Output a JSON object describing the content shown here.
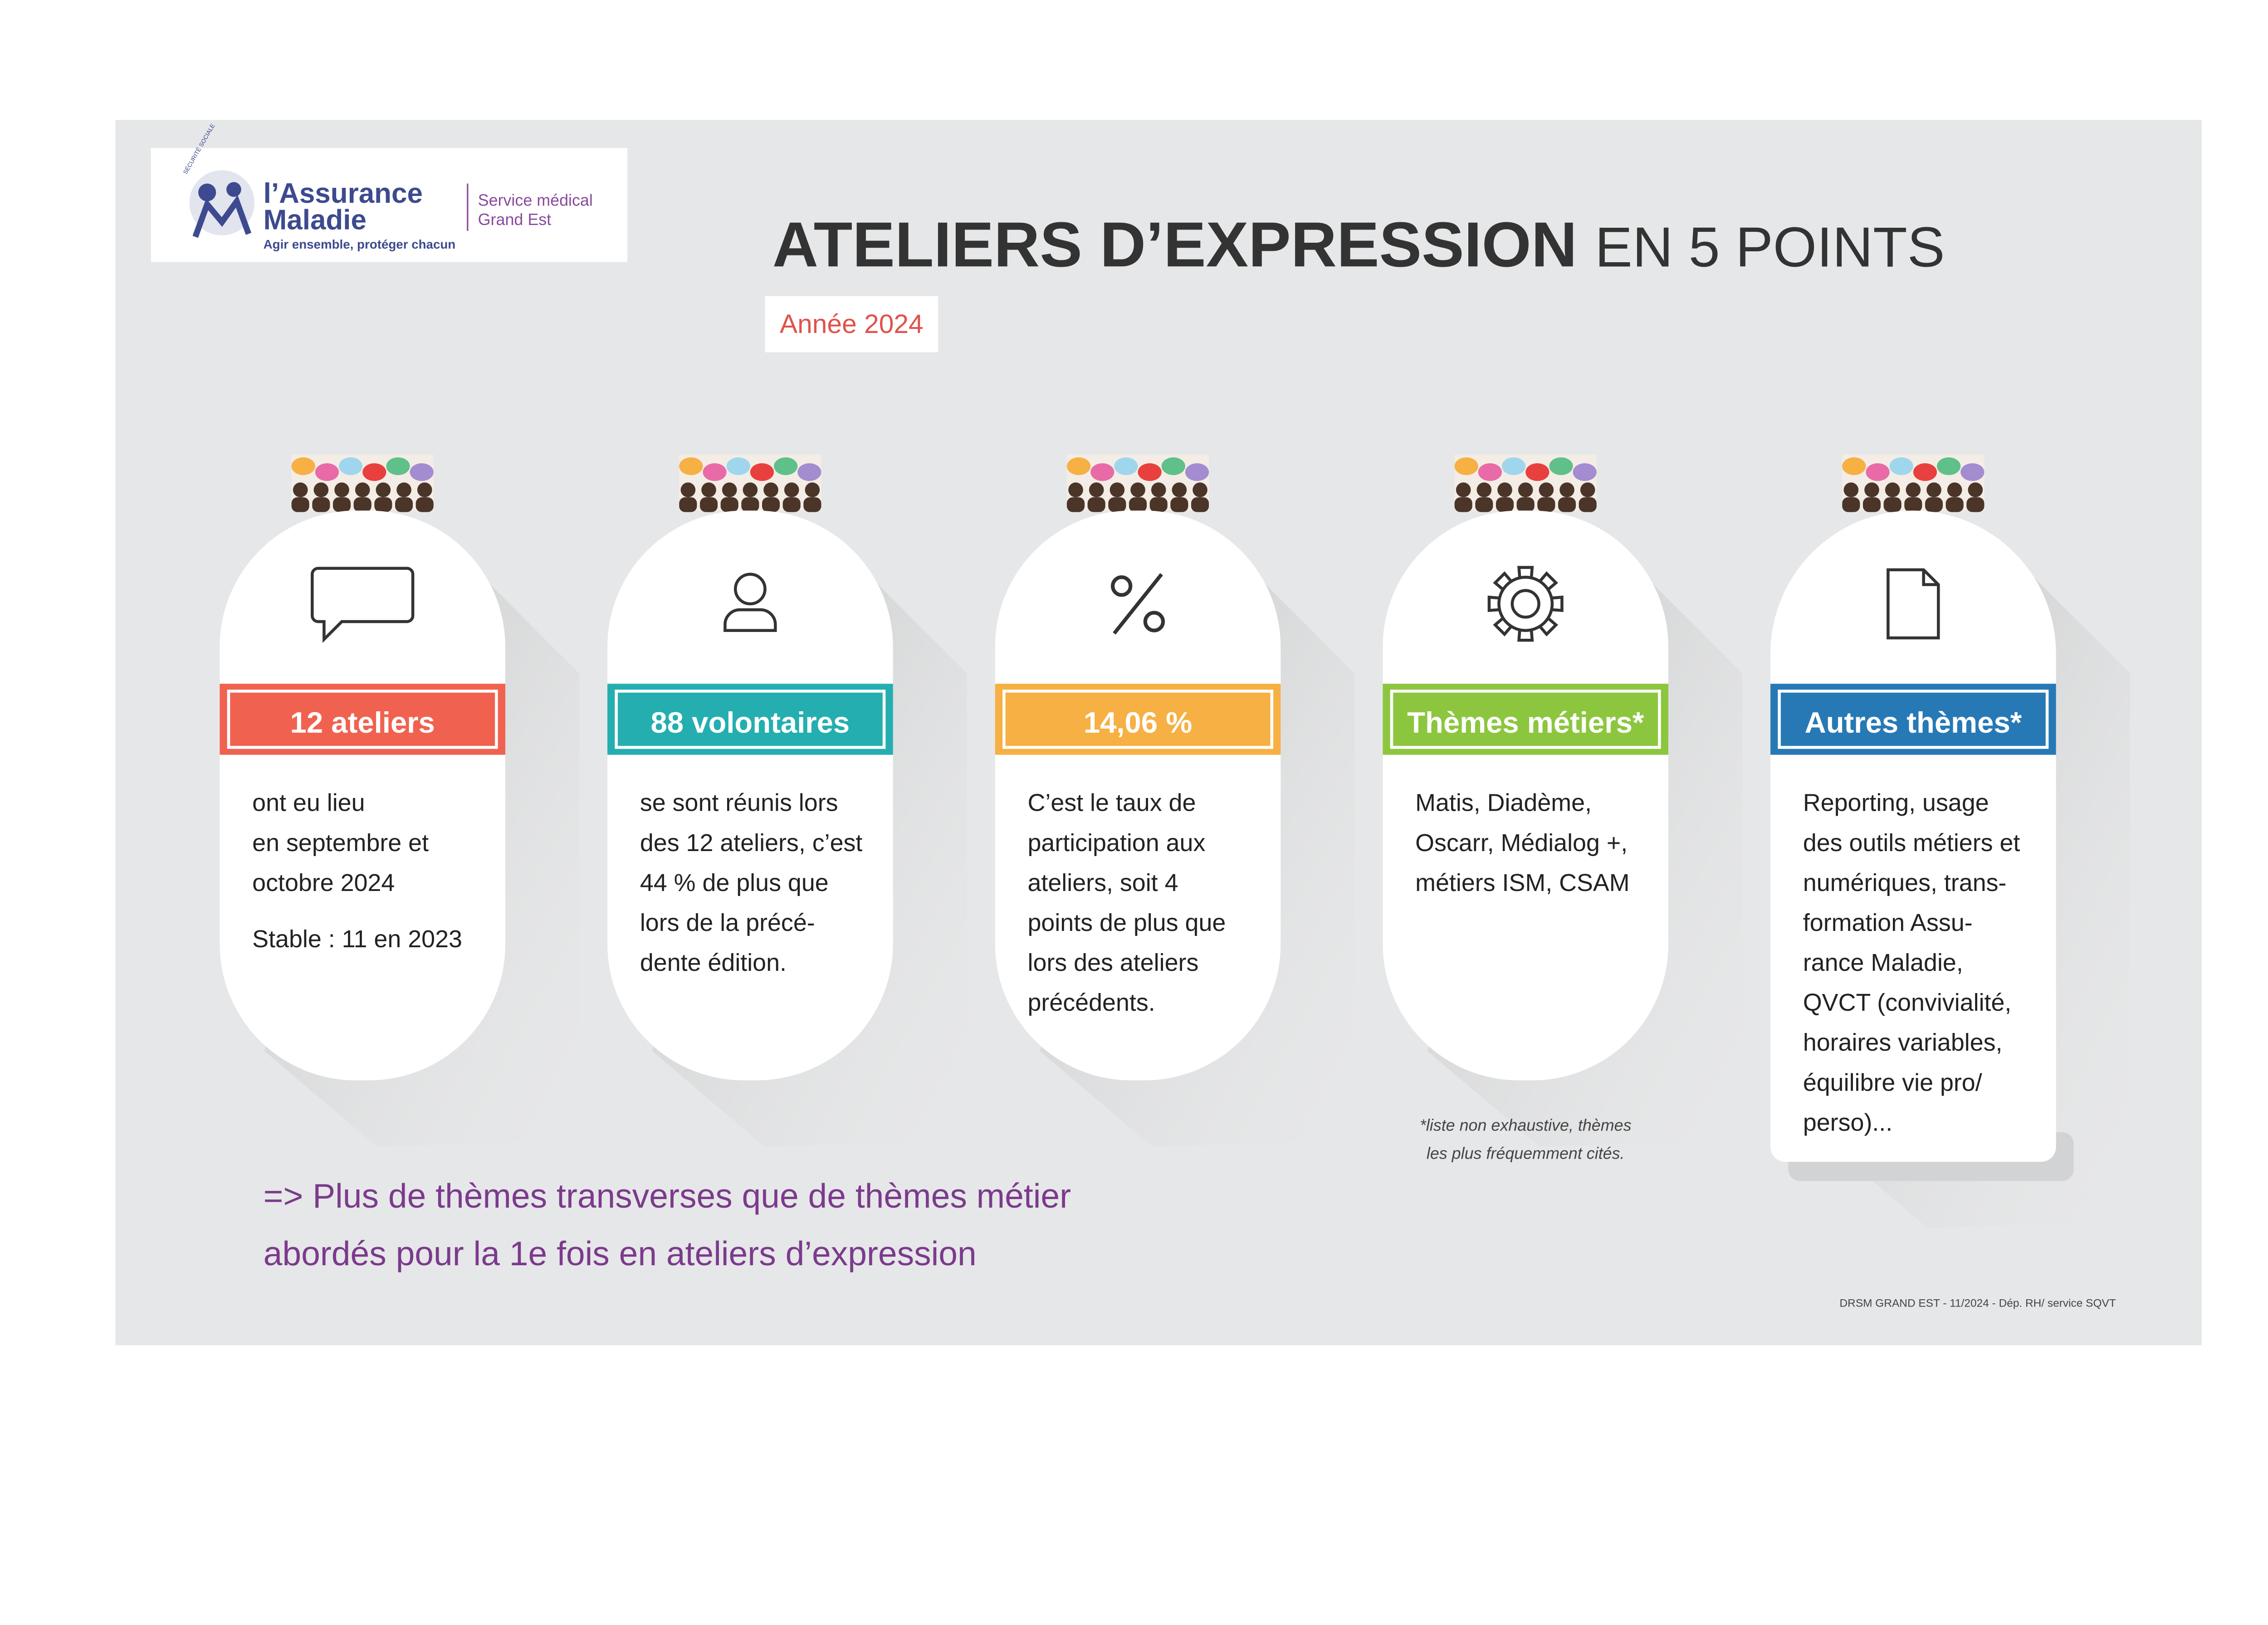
{
  "logo": {
    "arc_text": "SÉCURITÉ SOCIALE",
    "name_line1": "l’Assurance",
    "name_line2": "Maladie",
    "tagline": "Agir ensemble, protéger chacun",
    "service_line1": "Service médical",
    "service_line2": "Grand Est"
  },
  "header": {
    "title_bold": "ATELIERS D’EXPRESSION",
    "title_light": "EN 5 POINTS",
    "year": "Année 2024"
  },
  "cards": [
    {
      "label": "12 ateliers",
      "color": "#f0624f",
      "lines": [
        "ont eu lieu",
        "en septembre et",
        "octobre 2024"
      ],
      "extra": "Stable : 11 en 2023"
    },
    {
      "label": "88 volontaires",
      "color": "#24aeb0",
      "lines": [
        "se sont réunis lors",
        "des 12 ateliers, c’est",
        "44 % de plus que",
        "lors de la précé-",
        "dente édition."
      ]
    },
    {
      "label": "14,06 %",
      "color": "#f6b043",
      "lines": [
        "C’est le taux de",
        "participation aux",
        "ateliers, soit 4",
        "points de plus que",
        "lors des ateliers",
        "précédents."
      ]
    },
    {
      "label": "Thèmes métiers*",
      "color": "#8cc63f",
      "lines": [
        "Matis, Diadème,",
        "Oscarr, Médialog +,",
        "métiers ISM, CSAM"
      ]
    },
    {
      "label": "Autres thèmes*",
      "color": "#2779b6",
      "lines": [
        "Reporting, usage",
        "des outils métiers et",
        "numériques, trans-",
        "formation Assu-",
        "rance Maladie,",
        "QVCT (convivialité,",
        "horaires variables,",
        "équilibre vie pro/",
        "perso)..."
      ]
    }
  ],
  "footnote": [
    "*liste non exhaustive, thèmes",
    "les plus fréquemment cités."
  ],
  "conclusion": [
    "=> Plus de thèmes transverses que de thèmes métier",
    "abordés pour la 1e fois en ateliers d’expression"
  ],
  "credit": "DRSM GRAND EST - 11/2024 - Dép. RH/ service SQVT"
}
